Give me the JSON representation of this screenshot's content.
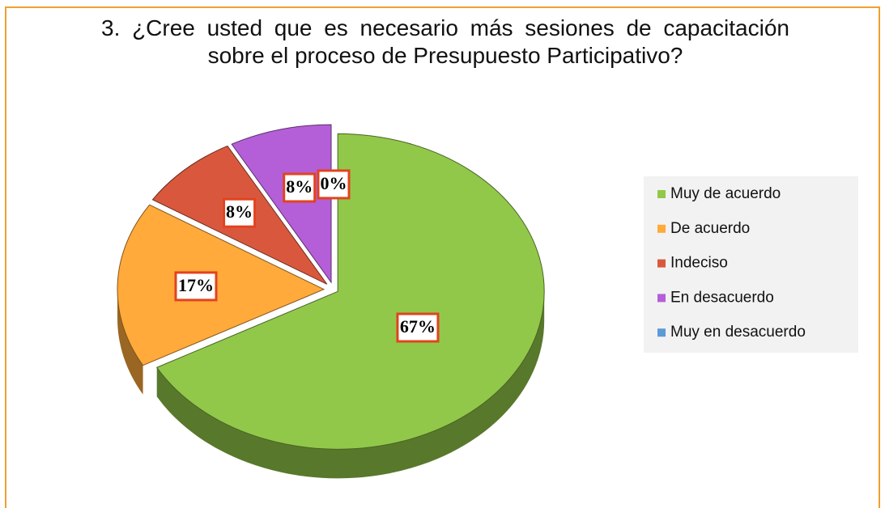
{
  "chart_data": {
    "type": "pie",
    "title": "3.  ¿Cree usted que es necesario más sesiones de capacitación sobre el proceso de Presupuesto Participativo?",
    "categories": [
      "Muy de acuerdo",
      "De acuerdo",
      "Indeciso",
      "En desacuerdo",
      "Muy en desacuerdo"
    ],
    "values": [
      67,
      17,
      8,
      8,
      0
    ],
    "value_labels": [
      "67%",
      "17%",
      "8%",
      "8%",
      "0%"
    ],
    "colors": [
      "#92c84a",
      "#ffaa3b",
      "#d9583d",
      "#b45fd8",
      "#5b9bd5"
    ],
    "legend": "right"
  }
}
